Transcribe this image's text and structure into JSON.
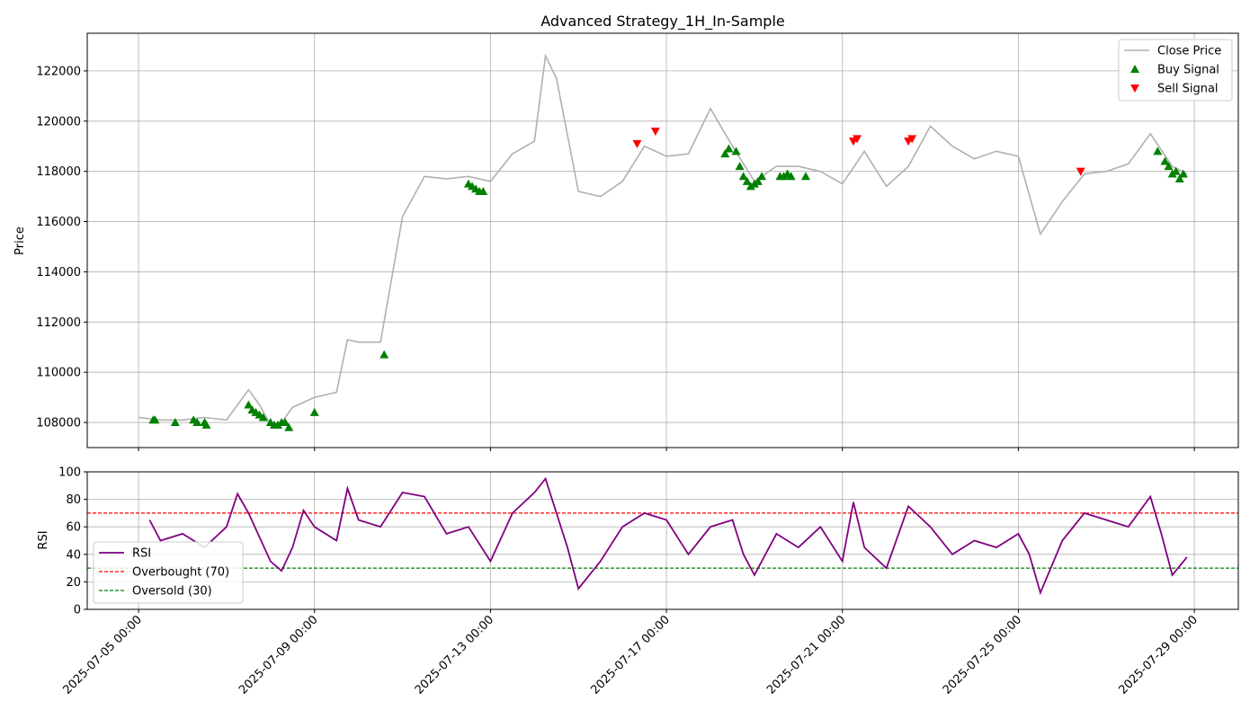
{
  "chart_data": [
    {
      "type": "line",
      "title": "Advanced Strategy_1H_In-Sample",
      "xlabel": "",
      "ylabel": "Price",
      "ylim": [
        107000,
        123500
      ],
      "yticks": [
        108000,
        110000,
        112000,
        114000,
        116000,
        118000,
        120000,
        122000
      ],
      "xlim": [
        "2025-07-03 20:00",
        "2025-07-30 00:00"
      ],
      "grid": true,
      "legend_position": "top-right",
      "series": [
        {
          "name": "Close Price",
          "color": "#b0b0b0",
          "x": [
            "2025-07-05 00:00",
            "2025-07-05 12:00",
            "2025-07-06 00:00",
            "2025-07-06 12:00",
            "2025-07-07 00:00",
            "2025-07-07 12:00",
            "2025-07-07 18:00",
            "2025-07-08 00:00",
            "2025-07-08 06:00",
            "2025-07-08 12:00",
            "2025-07-09 00:00",
            "2025-07-09 12:00",
            "2025-07-09 18:00",
            "2025-07-10 00:00",
            "2025-07-10 12:00",
            "2025-07-11 00:00",
            "2025-07-11 12:00",
            "2025-07-12 00:00",
            "2025-07-12 12:00",
            "2025-07-13 00:00",
            "2025-07-13 12:00",
            "2025-07-14 00:00",
            "2025-07-14 06:00",
            "2025-07-14 12:00",
            "2025-07-15 00:00",
            "2025-07-15 12:00",
            "2025-07-16 00:00",
            "2025-07-16 12:00",
            "2025-07-17 00:00",
            "2025-07-17 12:00",
            "2025-07-18 00:00",
            "2025-07-18 12:00",
            "2025-07-19 00:00",
            "2025-07-19 12:00",
            "2025-07-20 00:00",
            "2025-07-20 12:00",
            "2025-07-21 00:00",
            "2025-07-21 12:00",
            "2025-07-22 00:00",
            "2025-07-22 12:00",
            "2025-07-23 00:00",
            "2025-07-23 12:00",
            "2025-07-24 00:00",
            "2025-07-24 12:00",
            "2025-07-25 00:00",
            "2025-07-25 12:00",
            "2025-07-26 00:00",
            "2025-07-26 12:00",
            "2025-07-27 00:00",
            "2025-07-27 12:00",
            "2025-07-28 00:00",
            "2025-07-28 12:00",
            "2025-07-28 20:00"
          ],
          "values": [
            108200,
            108100,
            108100,
            108200,
            108100,
            109300,
            108700,
            107900,
            108000,
            108600,
            109000,
            109200,
            111300,
            111200,
            111200,
            116200,
            117800,
            117700,
            117800,
            117600,
            118700,
            119200,
            122600,
            121700,
            117200,
            117000,
            117600,
            119000,
            118600,
            118700,
            120500,
            119000,
            117600,
            118200,
            118200,
            118000,
            117500,
            118800,
            117400,
            118200,
            119800,
            119000,
            118500,
            118800,
            118600,
            115500,
            116800,
            117900,
            118000,
            118300,
            119500,
            118200,
            117900
          ]
        }
      ],
      "markers": [
        {
          "name": "Buy Signal",
          "color": "#008000",
          "shape": "triangle-up",
          "x": [
            "2025-07-05 08:00",
            "2025-07-05 09:00",
            "2025-07-05 20:00",
            "2025-07-06 06:00",
            "2025-07-06 08:00",
            "2025-07-06 12:00",
            "2025-07-06 13:00",
            "2025-07-07 12:00",
            "2025-07-07 14:00",
            "2025-07-07 16:00",
            "2025-07-07 18:00",
            "2025-07-07 20:00",
            "2025-07-08 00:00",
            "2025-07-08 02:00",
            "2025-07-08 04:00",
            "2025-07-08 06:00",
            "2025-07-08 08:00",
            "2025-07-08 10:00",
            "2025-07-09 00:00",
            "2025-07-10 14:00",
            "2025-07-12 12:00",
            "2025-07-12 14:00",
            "2025-07-12 16:00",
            "2025-07-12 18:00",
            "2025-07-12 20:00",
            "2025-07-18 08:00",
            "2025-07-18 10:00",
            "2025-07-18 14:00",
            "2025-07-18 16:00",
            "2025-07-18 18:00",
            "2025-07-18 20:00",
            "2025-07-18 22:00",
            "2025-07-19 00:00",
            "2025-07-19 02:00",
            "2025-07-19 04:00",
            "2025-07-19 14:00",
            "2025-07-19 16:00",
            "2025-07-19 18:00",
            "2025-07-19 20:00",
            "2025-07-20 04:00",
            "2025-07-28 04:00",
            "2025-07-28 08:00",
            "2025-07-28 10:00",
            "2025-07-28 12:00",
            "2025-07-28 14:00",
            "2025-07-28 16:00",
            "2025-07-28 18:00"
          ],
          "values": [
            108100,
            108100,
            108000,
            108100,
            108000,
            108000,
            107900,
            108700,
            108500,
            108400,
            108300,
            108200,
            108000,
            107900,
            107900,
            108000,
            108000,
            107800,
            108400,
            110700,
            117500,
            117400,
            117300,
            117200,
            117200,
            118700,
            118900,
            118800,
            118200,
            117800,
            117600,
            117400,
            117500,
            117600,
            117800,
            117800,
            117800,
            117900,
            117800,
            117800,
            118800,
            118400,
            118200,
            117900,
            118000,
            117700,
            117900
          ]
        },
        {
          "name": "Sell Signal",
          "color": "#ff0000",
          "shape": "triangle-down",
          "x": [
            "2025-07-16 08:00",
            "2025-07-16 18:00",
            "2025-07-21 06:00",
            "2025-07-21 08:00",
            "2025-07-22 12:00",
            "2025-07-22 14:00",
            "2025-07-26 10:00"
          ],
          "values": [
            119100,
            119600,
            119200,
            119300,
            119200,
            119300,
            118000
          ]
        }
      ]
    },
    {
      "type": "line",
      "title": "",
      "xlabel": "",
      "ylabel": "RSI",
      "ylim": [
        0,
        100
      ],
      "yticks": [
        0,
        20,
        40,
        60,
        80,
        100
      ],
      "xticks": [
        "2025-07-05 00:00",
        "2025-07-09 00:00",
        "2025-07-13 00:00",
        "2025-07-17 00:00",
        "2025-07-21 00:00",
        "2025-07-25 00:00",
        "2025-07-29 00:00"
      ],
      "grid": true,
      "legend_position": "bottom-left",
      "series": [
        {
          "name": "RSI",
          "color": "#800080",
          "x": [
            "2025-07-05 06:00",
            "2025-07-05 12:00",
            "2025-07-06 00:00",
            "2025-07-06 12:00",
            "2025-07-07 00:00",
            "2025-07-07 06:00",
            "2025-07-07 12:00",
            "2025-07-08 00:00",
            "2025-07-08 06:00",
            "2025-07-08 12:00",
            "2025-07-08 18:00",
            "2025-07-09 00:00",
            "2025-07-09 12:00",
            "2025-07-09 18:00",
            "2025-07-10 00:00",
            "2025-07-10 12:00",
            "2025-07-11 00:00",
            "2025-07-11 12:00",
            "2025-07-12 00:00",
            "2025-07-12 12:00",
            "2025-07-13 00:00",
            "2025-07-13 12:00",
            "2025-07-14 00:00",
            "2025-07-14 06:00",
            "2025-07-14 18:00",
            "2025-07-15 00:00",
            "2025-07-15 12:00",
            "2025-07-16 00:00",
            "2025-07-16 12:00",
            "2025-07-17 00:00",
            "2025-07-17 12:00",
            "2025-07-18 00:00",
            "2025-07-18 12:00",
            "2025-07-18 18:00",
            "2025-07-19 00:00",
            "2025-07-19 12:00",
            "2025-07-20 00:00",
            "2025-07-20 12:00",
            "2025-07-21 00:00",
            "2025-07-21 06:00",
            "2025-07-21 12:00",
            "2025-07-22 00:00",
            "2025-07-22 12:00",
            "2025-07-23 00:00",
            "2025-07-23 12:00",
            "2025-07-24 00:00",
            "2025-07-24 12:00",
            "2025-07-25 00:00",
            "2025-07-25 06:00",
            "2025-07-25 12:00",
            "2025-07-26 00:00",
            "2025-07-26 12:00",
            "2025-07-27 00:00",
            "2025-07-27 12:00",
            "2025-07-28 00:00",
            "2025-07-28 06:00",
            "2025-07-28 12:00",
            "2025-07-28 20:00"
          ],
          "values": [
            65,
            50,
            55,
            45,
            60,
            84,
            70,
            35,
            28,
            45,
            72,
            60,
            50,
            88,
            65,
            60,
            85,
            82,
            55,
            60,
            35,
            70,
            85,
            95,
            45,
            15,
            35,
            60,
            70,
            65,
            40,
            60,
            65,
            40,
            25,
            55,
            45,
            60,
            35,
            78,
            45,
            30,
            75,
            60,
            40,
            50,
            45,
            55,
            40,
            12,
            50,
            70,
            65,
            60,
            82,
            55,
            25,
            38
          ]
        }
      ],
      "reference_lines": [
        {
          "name": "Overbought (70)",
          "value": 70,
          "color": "#ff0000",
          "style": "dashed"
        },
        {
          "name": "Oversold (30)",
          "value": 30,
          "color": "#008000",
          "style": "dashed"
        }
      ]
    }
  ]
}
